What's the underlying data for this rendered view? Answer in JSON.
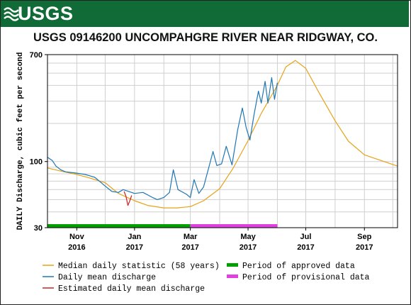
{
  "header": {
    "logo_text": "USGS",
    "title": "USGS 09146200 UNCOMPAHGRE RIVER NEAR RIDGWAY, CO."
  },
  "colors": {
    "banner": "#116b36",
    "median": "#e6a317",
    "daily": "#1f77b4",
    "estimated": "#cc2222",
    "approved": "#00a000",
    "provisional": "#e040e0"
  },
  "chart_data": {
    "type": "line",
    "title": "USGS 09146200 UNCOMPAHGRE RIVER NEAR RIDGWAY, CO.",
    "ylabel": "DAILY Discharge, cubic feet per second",
    "xlabel": "",
    "yscale": "log",
    "ylim": [
      30,
      700
    ],
    "y_ticks": [
      {
        "value": 30,
        "label": "30"
      },
      {
        "value": 100,
        "label": "100"
      },
      {
        "value": 700,
        "label": "700"
      }
    ],
    "x_ticks": [
      {
        "date": "2016-11-01",
        "label": [
          "Nov",
          "2016"
        ]
      },
      {
        "date": "2017-01-01",
        "label": [
          "Jan",
          "2017"
        ]
      },
      {
        "date": "2017-03-01",
        "label": [
          "Mar",
          "2017"
        ]
      },
      {
        "date": "2017-05-01",
        "label": [
          "May",
          "2017"
        ]
      },
      {
        "date": "2017-07-01",
        "label": [
          "Jul",
          "2017"
        ]
      },
      {
        "date": "2017-09-01",
        "label": [
          "Sep",
          "2017"
        ]
      }
    ],
    "xlim": [
      "2016-10-01",
      "2017-10-06"
    ],
    "grid": true,
    "series": [
      {
        "name": "Median daily statistic (58 years)",
        "color": "#e6a317",
        "points": [
          [
            "2016-10-01",
            89
          ],
          [
            "2016-10-15",
            84
          ],
          [
            "2016-11-01",
            79
          ],
          [
            "2016-11-15",
            74
          ],
          [
            "2016-12-01",
            68
          ],
          [
            "2016-12-15",
            56
          ],
          [
            "2017-01-01",
            49
          ],
          [
            "2017-01-15",
            45
          ],
          [
            "2017-02-01",
            43
          ],
          [
            "2017-02-15",
            43
          ],
          [
            "2017-03-01",
            44
          ],
          [
            "2017-03-15",
            49
          ],
          [
            "2017-04-01",
            61
          ],
          [
            "2017-04-15",
            88
          ],
          [
            "2017-05-01",
            146
          ],
          [
            "2017-05-15",
            240
          ],
          [
            "2017-06-01",
            400
          ],
          [
            "2017-06-10",
            560
          ],
          [
            "2017-06-20",
            630
          ],
          [
            "2017-07-01",
            545
          ],
          [
            "2017-07-15",
            350
          ],
          [
            "2017-08-01",
            210
          ],
          [
            "2017-08-15",
            145
          ],
          [
            "2017-09-01",
            113
          ],
          [
            "2017-09-15",
            104
          ],
          [
            "2017-10-06",
            92
          ]
        ]
      },
      {
        "name": "Daily mean discharge",
        "color": "#1f77b4",
        "points": [
          [
            "2016-10-01",
            108
          ],
          [
            "2016-10-06",
            102
          ],
          [
            "2016-10-10",
            92
          ],
          [
            "2016-10-15",
            86
          ],
          [
            "2016-10-20",
            83
          ],
          [
            "2016-11-01",
            81
          ],
          [
            "2016-11-10",
            79
          ],
          [
            "2016-11-20",
            75
          ],
          [
            "2016-12-01",
            64
          ],
          [
            "2016-12-08",
            58
          ],
          [
            "2016-12-15",
            57
          ],
          [
            "2016-12-20",
            60
          ],
          [
            "2017-01-01",
            56
          ],
          [
            "2017-01-10",
            57
          ],
          [
            "2017-01-20",
            52
          ],
          [
            "2017-01-25",
            50
          ],
          [
            "2017-02-01",
            52
          ],
          [
            "2017-02-07",
            57
          ],
          [
            "2017-02-11",
            86
          ],
          [
            "2017-02-16",
            60
          ],
          [
            "2017-02-25",
            55
          ],
          [
            "2017-03-01",
            52
          ],
          [
            "2017-03-05",
            72
          ],
          [
            "2017-03-10",
            56
          ],
          [
            "2017-03-15",
            63
          ],
          [
            "2017-03-20",
            87
          ],
          [
            "2017-03-25",
            120
          ],
          [
            "2017-03-29",
            93
          ],
          [
            "2017-04-03",
            96
          ],
          [
            "2017-04-08",
            132
          ],
          [
            "2017-04-14",
            94
          ],
          [
            "2017-04-20",
            178
          ],
          [
            "2017-04-25",
            265
          ],
          [
            "2017-04-29",
            185
          ],
          [
            "2017-05-03",
            148
          ],
          [
            "2017-05-07",
            228
          ],
          [
            "2017-05-12",
            360
          ],
          [
            "2017-05-15",
            290
          ],
          [
            "2017-05-19",
            430
          ],
          [
            "2017-05-22",
            290
          ],
          [
            "2017-05-26",
            460
          ],
          [
            "2017-05-29",
            310
          ],
          [
            "2017-06-01",
            420
          ]
        ]
      },
      {
        "name": "Estimated daily mean discharge",
        "color": "#cc2222",
        "points": [
          [
            "2016-12-21",
            58
          ],
          [
            "2016-12-23",
            53
          ],
          [
            "2016-12-25",
            45
          ],
          [
            "2016-12-27",
            49
          ],
          [
            "2016-12-29",
            54
          ]
        ]
      }
    ],
    "periods": [
      {
        "name": "Period of approved data",
        "color": "#00a000",
        "start": "2016-10-01",
        "end": "2017-03-01"
      },
      {
        "name": "Period of provisional data",
        "color": "#e040e0",
        "start": "2017-03-01",
        "end": "2017-06-01"
      }
    ],
    "legend": {
      "placement": "bottom",
      "items": [
        {
          "label": "Median daily statistic (58 years)",
          "color": "#e6a317",
          "kind": "line"
        },
        {
          "label": "Period of approved data",
          "color": "#00a000",
          "kind": "bar"
        },
        {
          "label": "Daily mean discharge",
          "color": "#1f77b4",
          "kind": "line"
        },
        {
          "label": "Period of provisional data",
          "color": "#e040e0",
          "kind": "bar"
        },
        {
          "label": "Estimated daily mean discharge",
          "color": "#cc2222",
          "kind": "line"
        }
      ]
    }
  }
}
